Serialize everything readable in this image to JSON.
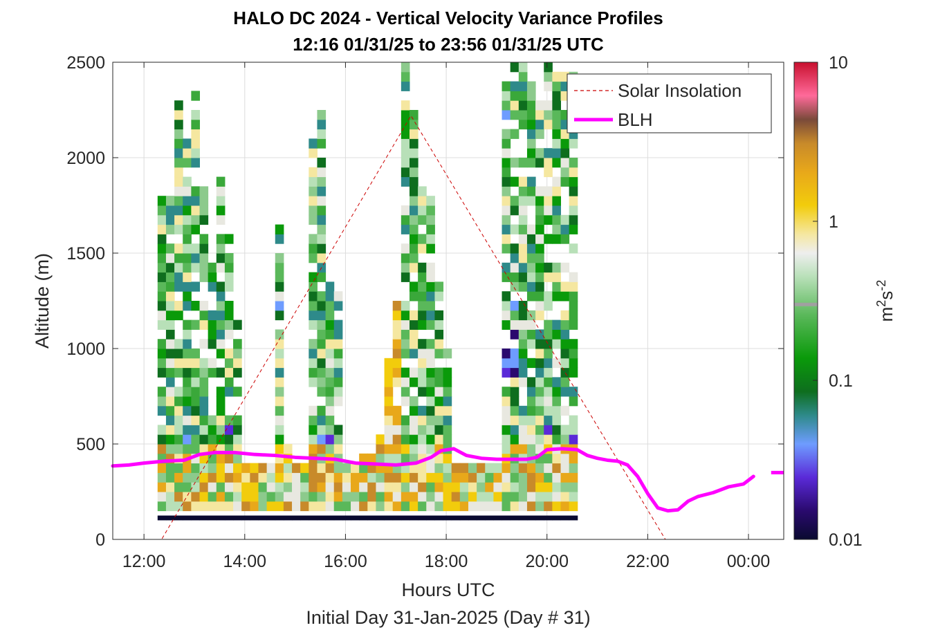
{
  "chart_data": {
    "type": "heatmap",
    "title": "HALO DC 2024 - Vertical Velocity Variance Profiles",
    "subtitle": "12:16 01/31/25 to 23:56 01/31/25  UTC",
    "xlabel": "Hours UTC",
    "xlabel2": "Initial Day 31-Jan-2025 (Day # 31)",
    "ylabel": "Altitude (m)",
    "xlim": [
      11.38,
      24.7
    ],
    "ylim": [
      0,
      2500
    ],
    "x_ticks": [
      12,
      14,
      16,
      18,
      20,
      22,
      24
    ],
    "x_tick_labels": [
      "12:00",
      "14:00",
      "16:00",
      "18:00",
      "20:00",
      "22:00",
      "00:00"
    ],
    "y_ticks": [
      0,
      500,
      1000,
      1500,
      2000,
      2500
    ],
    "y_tick_labels": [
      "0",
      "500",
      "1000",
      "1500",
      "2000",
      "2500"
    ],
    "grid": true,
    "colorbar": {
      "label_base": "m",
      "label_sup1": "2",
      "label_mid": "s",
      "label_sup2": "-2",
      "scale": "log",
      "range": [
        0.01,
        10
      ],
      "tick_labels": [
        "0.01",
        "0.1",
        "1",
        "10"
      ],
      "marker_value": 0.3
    },
    "legend": {
      "position": "top-right",
      "entries": [
        "Solar Insolation",
        "BLH"
      ]
    },
    "heatmap": {
      "x_start": 12.27,
      "x_step": 0.1667,
      "y_start": 100,
      "y_step": 50,
      "value_units": "m2 s-2"
    },
    "series": [
      {
        "name": "BLH",
        "x": [
          11.38,
          11.7,
          12.0,
          12.4,
          12.8,
          13.1,
          13.4,
          13.8,
          14.2,
          14.6,
          15.0,
          15.4,
          15.8,
          16.2,
          16.6,
          17.0,
          17.4,
          17.7,
          17.9,
          18.15,
          18.4,
          18.7,
          19.0,
          19.3,
          19.6,
          19.8,
          20.0,
          20.3,
          20.6,
          20.8,
          21.0,
          21.2,
          21.4,
          21.6,
          21.8,
          22.0,
          22.2,
          22.4,
          22.6,
          22.8,
          23.0,
          23.3,
          23.6,
          23.9,
          24.1
        ],
        "y": [
          385,
          390,
          400,
          410,
          415,
          445,
          455,
          455,
          445,
          440,
          430,
          425,
          420,
          400,
          395,
          390,
          400,
          430,
          465,
          475,
          440,
          425,
          420,
          420,
          420,
          430,
          470,
          475,
          470,
          440,
          425,
          415,
          410,
          390,
          330,
          240,
          165,
          150,
          155,
          200,
          225,
          245,
          275,
          290,
          330
        ]
      },
      {
        "name": "Solar Insolation",
        "x": [
          11.38,
          12.35,
          17.3,
          22.35,
          24.7
        ],
        "y": [
          0,
          0,
          2220,
          0,
          0
        ]
      }
    ],
    "blh_fragment": {
      "x": [
        24.45,
        24.7
      ],
      "y": [
        350,
        350
      ]
    }
  }
}
